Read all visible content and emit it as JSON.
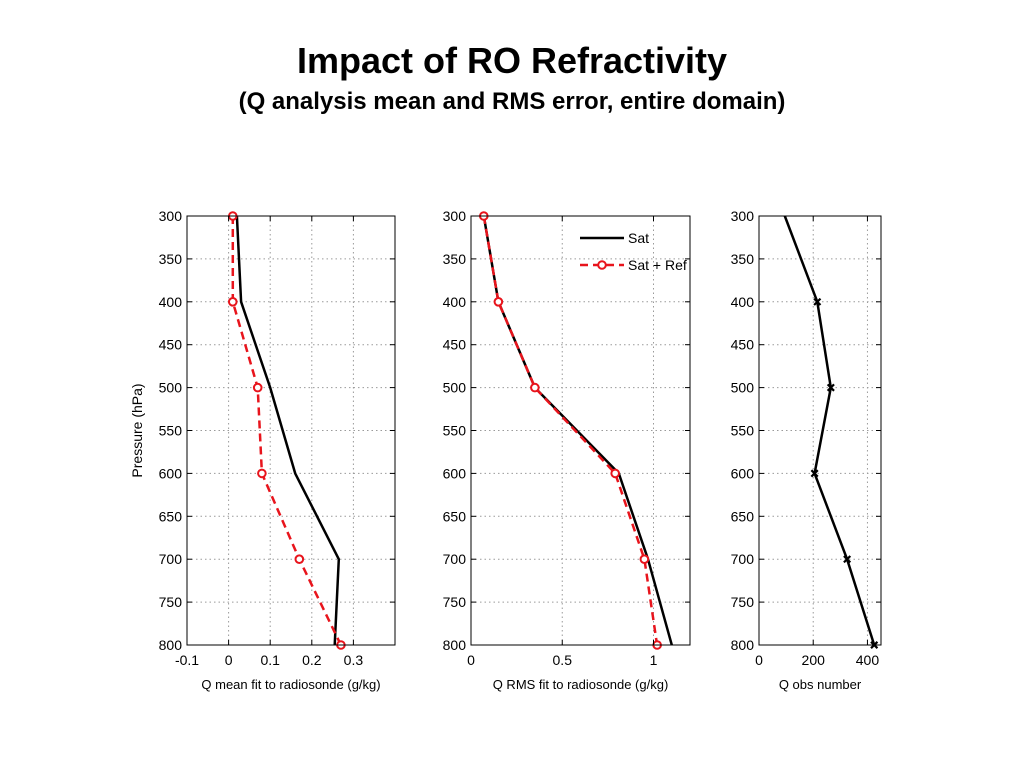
{
  "slide": {
    "title": "Impact of RO Refractivity",
    "subtitle": "(Q analysis mean and RMS error, entire domain)"
  },
  "colors": {
    "sat": "#000000",
    "sat_ref": "#e8141c",
    "grid": "#9a9a9a"
  },
  "chart_data": [
    {
      "type": "line",
      "xlabel": "Q mean fit to radiosonde (g/kg)",
      "ylabel": "Pressure (hPa)",
      "xlim": [
        -0.1,
        0.4
      ],
      "ylim": [
        300,
        800
      ],
      "y_reversed": true,
      "xticks": [
        -0.1,
        0,
        0.1,
        0.2,
        0.3
      ],
      "xtick_labels": [
        "-0.1",
        "0",
        "0.1",
        "0.2",
        "0.3"
      ],
      "yticks": [
        300,
        350,
        400,
        450,
        500,
        550,
        600,
        650,
        700,
        750,
        800
      ],
      "grid": true,
      "series": [
        {
          "name": "Sat",
          "style": "solid",
          "color": "#000000",
          "marker": "none",
          "x": [
            0.02,
            0.03,
            0.1,
            0.16,
            0.265,
            0.255
          ],
          "y": [
            300,
            400,
            500,
            600,
            700,
            800
          ]
        },
        {
          "name": "Sat + Ref",
          "style": "dashed",
          "color": "#e8141c",
          "marker": "circle",
          "x": [
            0.01,
            0.01,
            0.07,
            0.08,
            0.17,
            0.27
          ],
          "y": [
            300,
            400,
            500,
            600,
            700,
            800
          ]
        }
      ]
    },
    {
      "type": "line",
      "xlabel": "Q RMS fit to radiosonde (g/kg)",
      "xlim": [
        0,
        1.2
      ],
      "ylim": [
        300,
        800
      ],
      "y_reversed": true,
      "xticks": [
        0,
        0.5,
        1
      ],
      "xtick_labels": [
        "0",
        "0.5",
        "1"
      ],
      "yticks": [
        300,
        350,
        400,
        450,
        500,
        550,
        600,
        650,
        700,
        750,
        800
      ],
      "grid": true,
      "legend": {
        "position": "top-right",
        "entries": [
          "Sat",
          "Sat + Ref"
        ]
      },
      "series": [
        {
          "name": "Sat",
          "style": "solid",
          "color": "#000000",
          "marker": "none",
          "x": [
            0.07,
            0.15,
            0.35,
            0.81,
            0.97,
            1.1
          ],
          "y": [
            300,
            400,
            500,
            600,
            700,
            800
          ]
        },
        {
          "name": "Sat + Ref",
          "style": "dashed",
          "color": "#e8141c",
          "marker": "circle",
          "x": [
            0.07,
            0.15,
            0.35,
            0.79,
            0.95,
            1.02
          ],
          "y": [
            300,
            400,
            500,
            600,
            700,
            800
          ]
        }
      ]
    },
    {
      "type": "line",
      "xlabel": "Q obs number",
      "xlim": [
        0,
        450
      ],
      "ylim": [
        300,
        800
      ],
      "y_reversed": true,
      "xticks": [
        0,
        200,
        400
      ],
      "xtick_labels": [
        "0",
        "200",
        "400"
      ],
      "yticks": [
        300,
        350,
        400,
        450,
        500,
        550,
        600,
        650,
        700,
        750,
        800
      ],
      "grid": true,
      "series": [
        {
          "style": "solid",
          "color": "#000000",
          "marker": "x",
          "x": [
            95,
            215,
            265,
            205,
            325,
            425
          ],
          "y": [
            300,
            400,
            500,
            600,
            700,
            800
          ],
          "marked": [
            false,
            true,
            true,
            true,
            true,
            true
          ]
        }
      ]
    }
  ]
}
